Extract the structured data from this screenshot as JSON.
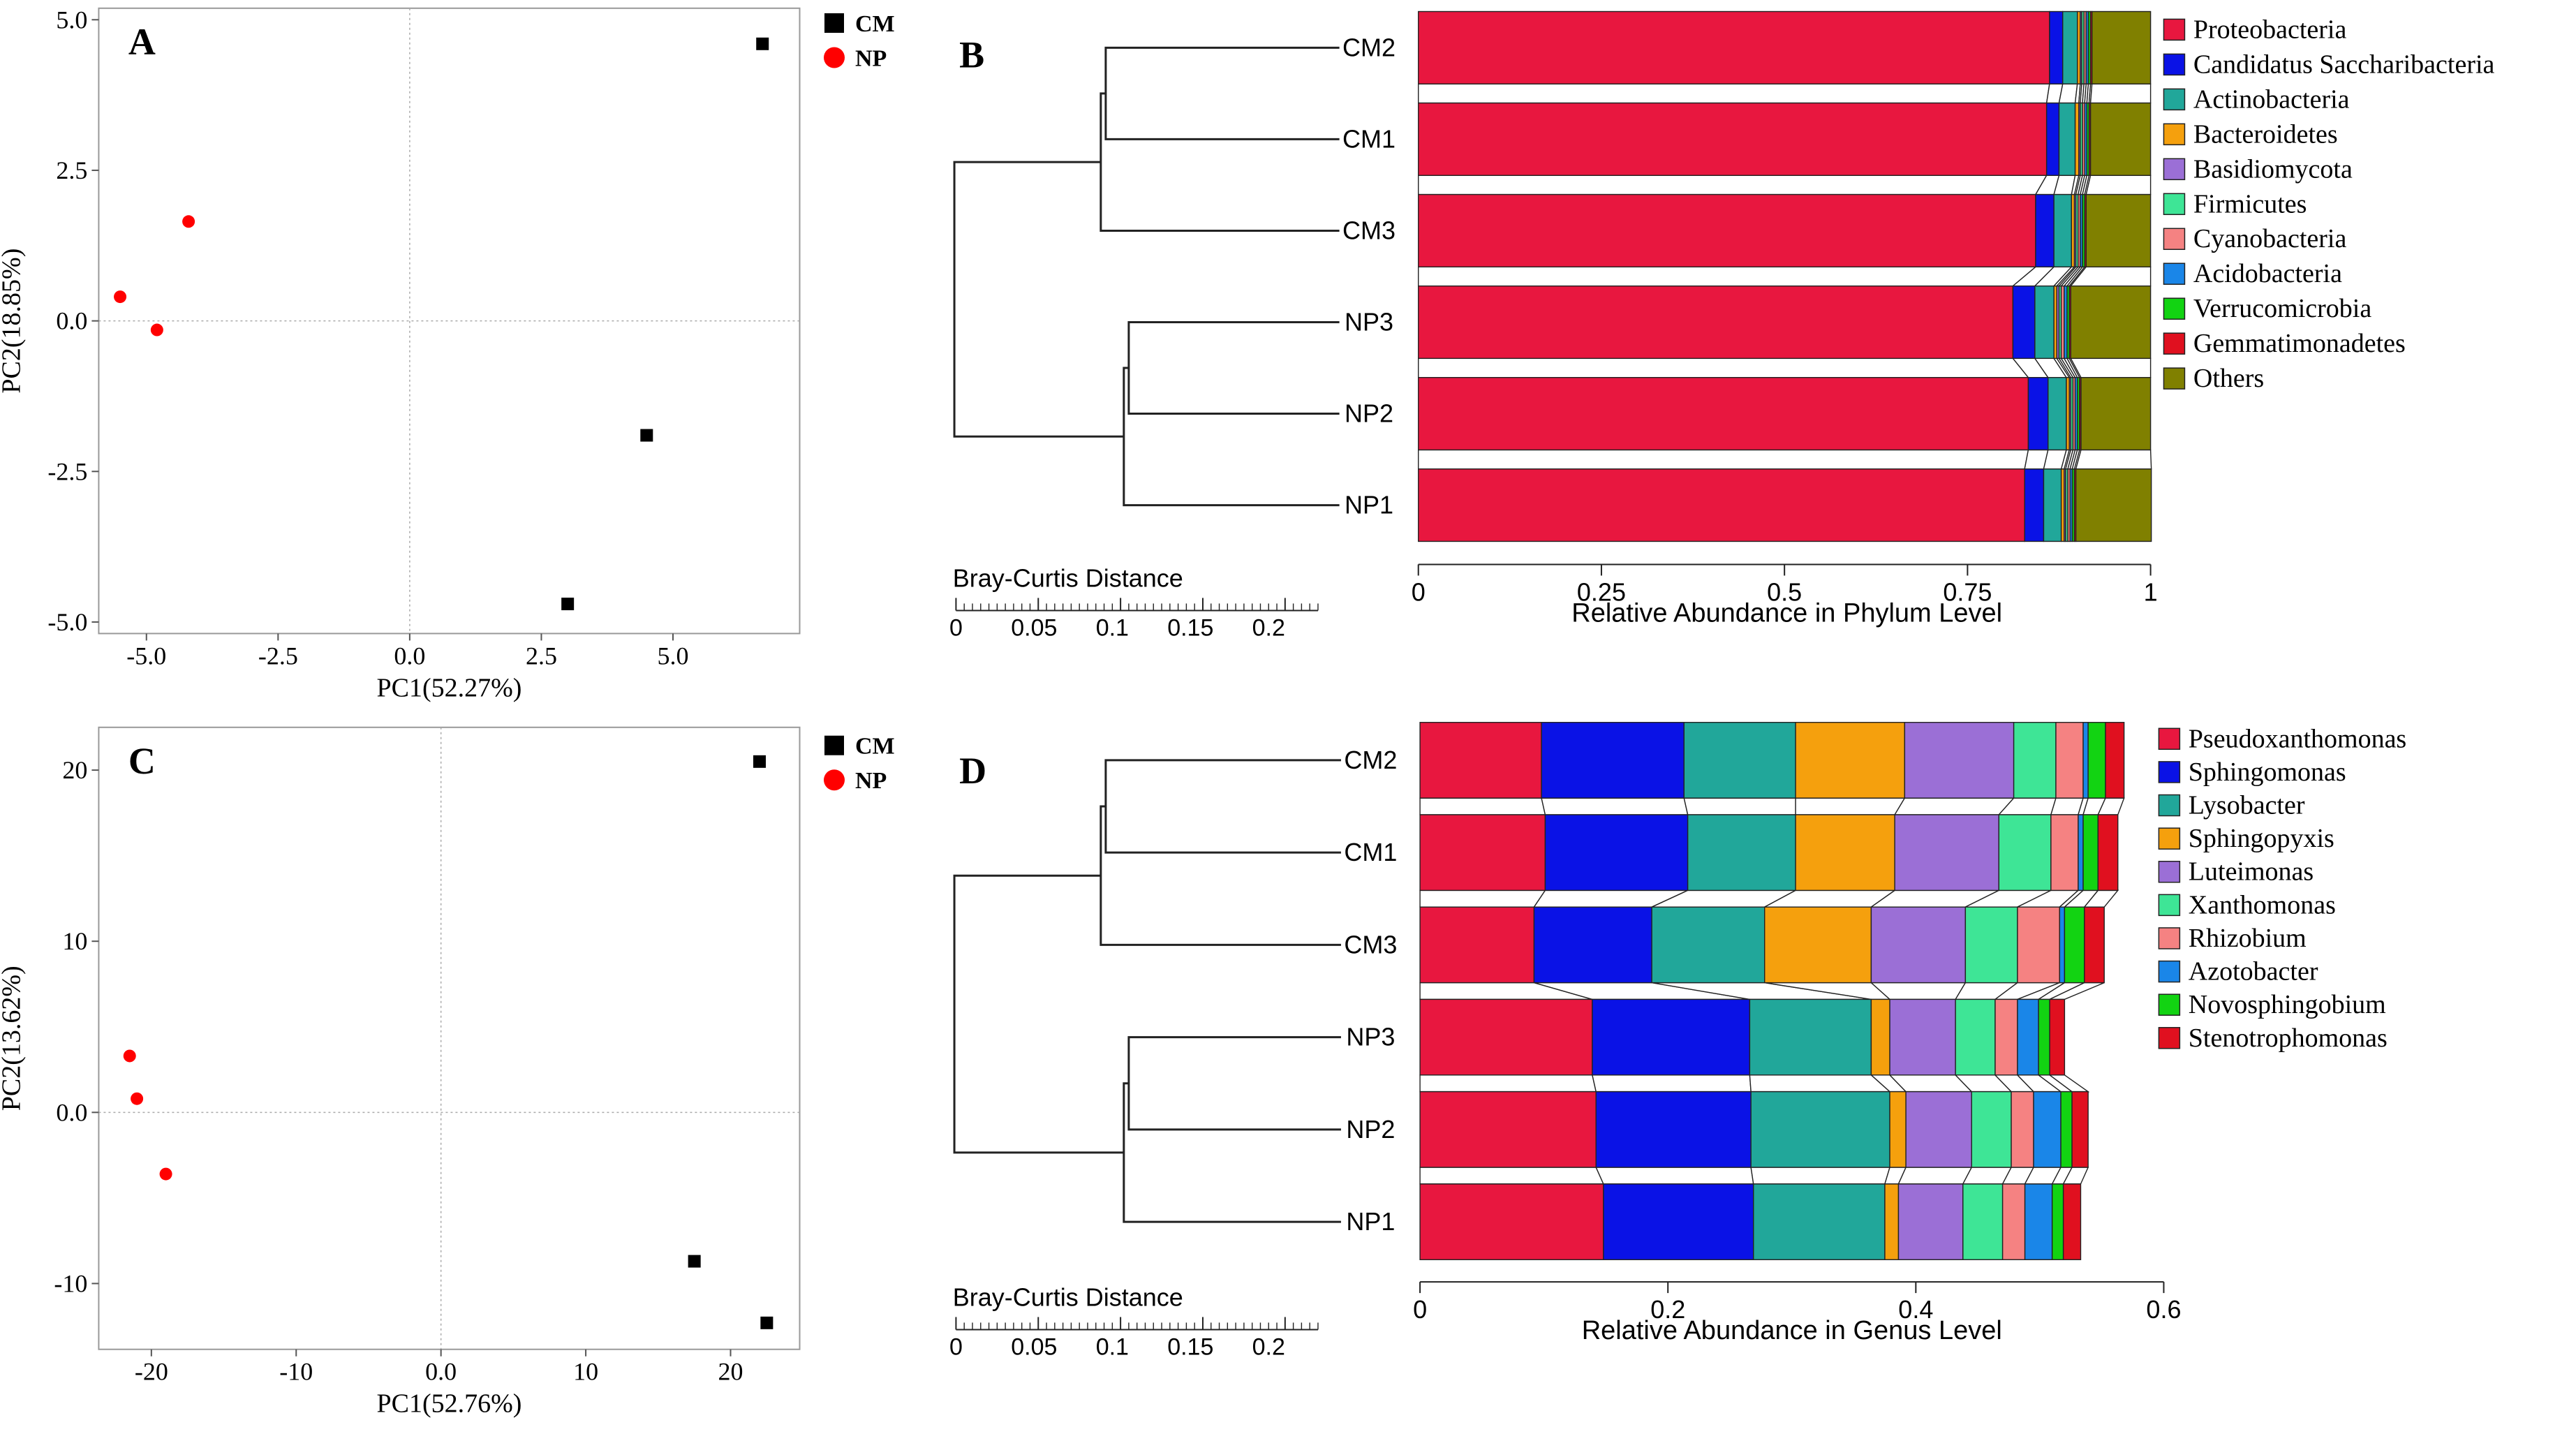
{
  "chart_data": [
    {
      "type": "scatter",
      "panel": "A",
      "xlabel": "PC1(52.27%)",
      "ylabel": "PC2(18.85%)",
      "xlim": [
        -6,
        7
      ],
      "ylim": [
        -5.5,
        5
      ],
      "xticks": [
        -5.0,
        -2.5,
        0.0,
        2.5,
        5.0
      ],
      "yticks": [
        5.0,
        2.5,
        0.0,
        -2.5,
        -5.0
      ],
      "xtick_labels": [
        "-5.0",
        "-2.5",
        "0.0",
        "2.5",
        "5.0"
      ],
      "ytick_labels": [
        "5.0",
        "2.5",
        "0.0",
        "-2.5",
        "-5.0"
      ],
      "legend": [
        "CM",
        "NP"
      ],
      "series": [
        {
          "name": "CM",
          "color": "#000000",
          "marker": "square",
          "points": [
            [
              6.7,
              4.6
            ],
            [
              4.5,
              -1.9
            ],
            [
              3.0,
              -4.7
            ]
          ]
        },
        {
          "name": "NP",
          "color": "#ff0000",
          "marker": "circle",
          "points": [
            [
              -4.2,
              1.65
            ],
            [
              -5.5,
              0.4
            ],
            [
              -4.8,
              -0.15
            ]
          ]
        }
      ]
    },
    {
      "type": "scatter",
      "panel": "C",
      "xlabel": "PC1(52.76%)",
      "ylabel": "PC2(13.62%)",
      "xlim": [
        -25,
        25
      ],
      "ylim": [
        -14,
        22
      ],
      "xticks": [
        -20,
        -10,
        0,
        10,
        20
      ],
      "yticks": [
        20,
        10,
        0,
        -10
      ],
      "xtick_labels": [
        "-20",
        "-10",
        "0.0",
        "10",
        "20"
      ],
      "ytick_labels": [
        "20",
        "10",
        "0.0",
        "-10"
      ],
      "legend": [
        "CM",
        "NP"
      ],
      "series": [
        {
          "name": "CM",
          "color": "#000000",
          "marker": "square",
          "points": [
            [
              22,
              20.5
            ],
            [
              17.5,
              -8.7
            ],
            [
              22.5,
              -12.3
            ]
          ]
        },
        {
          "name": "NP",
          "color": "#ff0000",
          "marker": "circle",
          "points": [
            [
              -21.5,
              3.3
            ],
            [
              -21,
              0.8
            ],
            [
              -19,
              -3.6
            ]
          ]
        }
      ]
    },
    {
      "type": "bar",
      "panel": "B",
      "orientation": "horizontal-stacked",
      "xlabel": "Relative Abundance in Phylum Level",
      "xlim": [
        0,
        1
      ],
      "xticks": [
        0,
        0.25,
        0.5,
        0.75,
        1
      ],
      "xtick_labels": [
        "0",
        "0.25",
        "0.5",
        "0.75",
        "1"
      ],
      "dendrogram_label": "Bray-Curtis Distance",
      "dendrogram_ticks": [
        "0",
        "0.05",
        "0.1",
        "0.15",
        "0.2"
      ],
      "categories": [
        "CM2",
        "CM1",
        "CM3",
        "NP3",
        "NP2",
        "NP1"
      ],
      "series": [
        {
          "name": "Proteobacteria",
          "color": "#e8173f",
          "values": [
            0.862,
            0.858,
            0.843,
            0.812,
            0.833,
            0.828
          ]
        },
        {
          "name": "Candidatus Saccharibacteria",
          "color": "#0a12e6",
          "values": [
            0.018,
            0.017,
            0.025,
            0.03,
            0.027,
            0.026
          ]
        },
        {
          "name": "Actinobacteria",
          "color": "#21a79a",
          "values": [
            0.02,
            0.022,
            0.024,
            0.026,
            0.025,
            0.024
          ]
        },
        {
          "name": "Bacteroidetes",
          "color": "#f5a00d",
          "values": [
            0.004,
            0.005,
            0.004,
            0.004,
            0.004,
            0.004
          ]
        },
        {
          "name": "Basidiomycota",
          "color": "#9b6fd6",
          "values": [
            0.002,
            0.002,
            0.002,
            0.003,
            0.002,
            0.002
          ]
        },
        {
          "name": "Firmicutes",
          "color": "#3ee596",
          "values": [
            0.003,
            0.003,
            0.003,
            0.003,
            0.003,
            0.003
          ]
        },
        {
          "name": "Cyanobacteria",
          "color": "#f58282",
          "values": [
            0.003,
            0.003,
            0.003,
            0.004,
            0.003,
            0.003
          ]
        },
        {
          "name": "Acidobacteria",
          "color": "#1a86e8",
          "values": [
            0.003,
            0.003,
            0.003,
            0.004,
            0.003,
            0.003
          ]
        },
        {
          "name": "Verrucomicrobia",
          "color": "#12d312",
          "values": [
            0.003,
            0.003,
            0.003,
            0.003,
            0.003,
            0.003
          ]
        },
        {
          "name": "Gemmatimonadetes",
          "color": "#e0101f",
          "values": [
            0.002,
            0.002,
            0.002,
            0.002,
            0.002,
            0.002
          ]
        },
        {
          "name": "Others",
          "color": "#808000",
          "values": [
            0.08,
            0.082,
            0.088,
            0.109,
            0.095,
            0.103
          ]
        }
      ]
    },
    {
      "type": "bar",
      "panel": "D",
      "orientation": "horizontal-stacked",
      "xlabel": "Relative Abundance in Genus Level",
      "xlim": [
        0,
        0.6
      ],
      "xticks": [
        0,
        0.2,
        0.4,
        0.6
      ],
      "xtick_labels": [
        "0",
        "0.2",
        "0.4",
        "0.6"
      ],
      "dendrogram_label": "Bray-Curtis Distance",
      "dendrogram_ticks": [
        "0",
        "0.05",
        "0.1",
        "0.15",
        "0.2"
      ],
      "categories": [
        "CM2",
        "CM1",
        "CM3",
        "NP3",
        "NP2",
        "NP1"
      ],
      "series": [
        {
          "name": "Pseudoxanthomonas",
          "color": "#e8173f",
          "values": [
            0.098,
            0.101,
            0.092,
            0.139,
            0.142,
            0.148
          ]
        },
        {
          "name": "Sphingomonas",
          "color": "#0a12e6",
          "values": [
            0.115,
            0.115,
            0.095,
            0.127,
            0.125,
            0.121
          ]
        },
        {
          "name": "Lysobacter",
          "color": "#21a79a",
          "values": [
            0.09,
            0.087,
            0.091,
            0.098,
            0.112,
            0.106
          ]
        },
        {
          "name": "Sphingopyxis",
          "color": "#f5a00d",
          "values": [
            0.088,
            0.08,
            0.086,
            0.015,
            0.013,
            0.011
          ]
        },
        {
          "name": "Luteimonas",
          "color": "#9b6fd6",
          "values": [
            0.088,
            0.084,
            0.076,
            0.053,
            0.053,
            0.052
          ]
        },
        {
          "name": "Xanthomonas",
          "color": "#3ee596",
          "values": [
            0.034,
            0.042,
            0.042,
            0.032,
            0.032,
            0.032
          ]
        },
        {
          "name": "Rhizobium",
          "color": "#f58282",
          "values": [
            0.022,
            0.022,
            0.034,
            0.018,
            0.018,
            0.018
          ]
        },
        {
          "name": "Azotobacter",
          "color": "#1a86e8",
          "values": [
            0.004,
            0.004,
            0.004,
            0.017,
            0.022,
            0.022
          ]
        },
        {
          "name": "Novosphingobium",
          "color": "#12d312",
          "values": [
            0.014,
            0.012,
            0.016,
            0.009,
            0.009,
            0.009
          ]
        },
        {
          "name": "Stenotrophomonas",
          "color": "#e0101f",
          "values": [
            0.015,
            0.016,
            0.016,
            0.012,
            0.013,
            0.014
          ]
        }
      ]
    }
  ]
}
